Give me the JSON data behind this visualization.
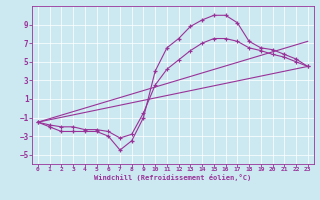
{
  "xlabel": "Windchill (Refroidissement éolien,°C)",
  "bg_color": "#cce8f0",
  "line_color": "#993399",
  "xlim": [
    -0.5,
    23.5
  ],
  "ylim": [
    -6,
    11
  ],
  "yticks": [
    -5,
    -3,
    -1,
    1,
    3,
    5,
    7,
    9
  ],
  "xticks": [
    0,
    1,
    2,
    3,
    4,
    5,
    6,
    7,
    8,
    9,
    10,
    11,
    12,
    13,
    14,
    15,
    16,
    17,
    18,
    19,
    20,
    21,
    22,
    23
  ],
  "curve1_x": [
    0,
    1,
    2,
    3,
    4,
    5,
    6,
    7,
    8,
    9,
    10,
    11,
    12,
    13,
    14,
    15,
    16,
    17,
    18,
    19,
    20,
    21,
    22,
    23
  ],
  "curve1_y": [
    -1.5,
    -2.0,
    -2.5,
    -2.5,
    -2.5,
    -2.5,
    -3.0,
    -4.5,
    -3.5,
    -1.0,
    4.0,
    6.5,
    7.5,
    8.8,
    9.5,
    10.0,
    10.0,
    9.2,
    7.2,
    6.5,
    6.3,
    5.8,
    5.3,
    4.5
  ],
  "line1_x": [
    0,
    23
  ],
  "line1_y": [
    -1.5,
    4.5
  ],
  "line2_x": [
    0,
    23
  ],
  "line2_y": [
    -1.5,
    7.2
  ],
  "curve2_x": [
    0,
    1,
    2,
    3,
    4,
    5,
    6,
    7,
    8,
    9,
    10,
    11,
    12,
    13,
    14,
    15,
    16,
    17,
    18,
    19,
    20,
    21,
    22,
    23
  ],
  "curve2_y": [
    -1.5,
    -1.8,
    -2.0,
    -2.0,
    -2.3,
    -2.3,
    -2.5,
    -3.2,
    -2.8,
    -0.5,
    2.5,
    4.2,
    5.2,
    6.2,
    7.0,
    7.5,
    7.5,
    7.2,
    6.5,
    6.2,
    5.8,
    5.5,
    5.0,
    4.5
  ]
}
